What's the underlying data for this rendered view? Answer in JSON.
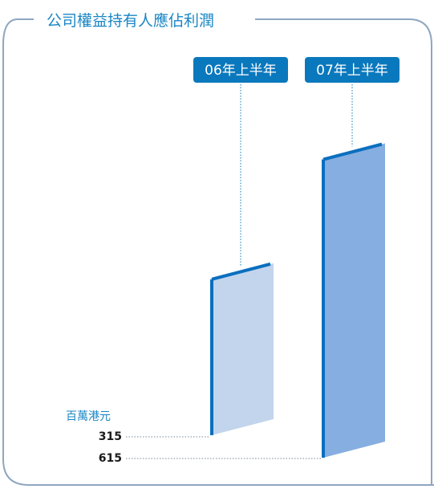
{
  "colors": {
    "frame": "#8fa6c0",
    "accent": "#0a78bd",
    "title": "#1a86c4",
    "label_box": "#0a78bd",
    "bar_front": [
      "#c2d5ed",
      "#86aee0"
    ],
    "bar_edge": "#0a6fbf"
  },
  "chart_data": {
    "type": "bar",
    "title": "公司權益持有人應佔利潤",
    "unit": "百萬港元",
    "categories": [
      "06年上半年",
      "07年上半年"
    ],
    "values": [
      315,
      615
    ],
    "value_labels": [
      "315",
      "615"
    ],
    "ylim": [
      0,
      680
    ],
    "grid": false,
    "legend": "none"
  }
}
